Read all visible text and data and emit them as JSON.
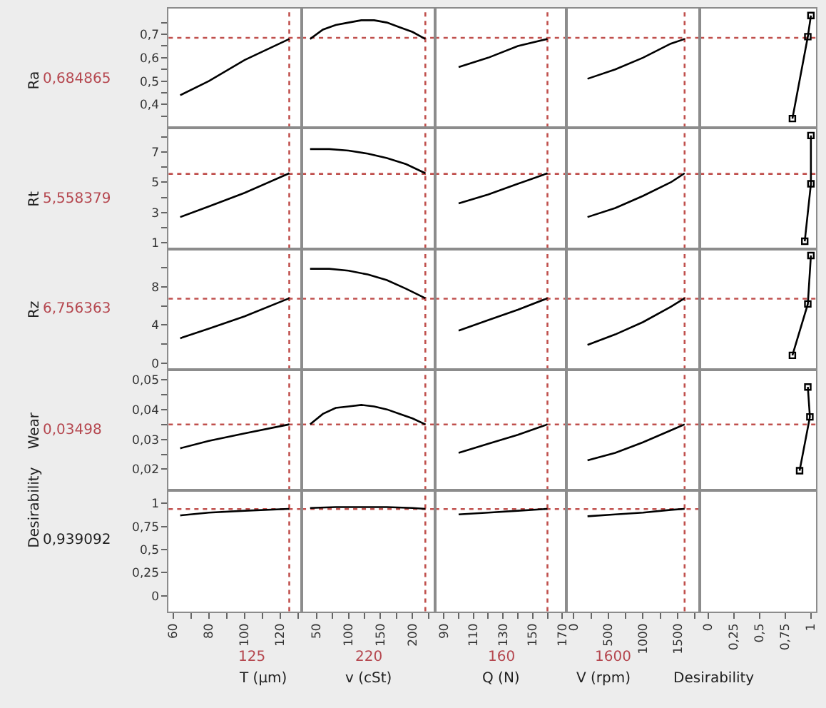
{
  "chart_data": [
    {
      "type": "line",
      "ylabel": "Ra",
      "annotations": [
        "0,684865"
      ],
      "x": [
        64,
        80,
        100,
        125
      ],
      "values": [
        0.44,
        0.5,
        0.59,
        0.68
      ],
      "color": "#000000",
      "xlim": [
        57.5,
        132
      ],
      "ylim": [
        0.3,
        0.81
      ],
      "yticks": [
        {
          "value": 0.35,
          "label": null
        },
        {
          "value": 0.4,
          "label": "0,4"
        },
        {
          "value": 0.45,
          "label": null
        },
        {
          "value": 0.5,
          "label": "0,5"
        },
        {
          "value": 0.55,
          "label": null
        },
        {
          "value": 0.6,
          "label": "0,6"
        },
        {
          "value": 0.65,
          "label": null
        },
        {
          "value": 0.7,
          "label": "0,7"
        },
        {
          "value": 0.75,
          "label": null
        }
      ],
      "tick_labels": "y",
      "ref_lines": [
        {
          "axis": "y",
          "value": 0.684865,
          "color": "#c0504d",
          "line_style": "dotted"
        },
        {
          "axis": "x",
          "value": 125,
          "color": "#c0504d",
          "line_style": "dotted"
        }
      ]
    },
    {
      "type": "line",
      "x": [
        40,
        60,
        80,
        100,
        120,
        140,
        160,
        180,
        200,
        220
      ],
      "values": [
        0.68,
        0.72,
        0.74,
        0.75,
        0.76,
        0.76,
        0.75,
        0.73,
        0.71,
        0.68
      ],
      "color": "#000000",
      "xlim": [
        27,
        235
      ],
      "ylim": [
        0.3,
        0.81
      ],
      "tick_labels": false,
      "ref_lines": [
        {
          "axis": "y",
          "value": 0.684865,
          "color": "#c0504d",
          "line_style": "dotted"
        },
        {
          "axis": "x",
          "value": 220,
          "color": "#c0504d",
          "line_style": "dotted"
        }
      ]
    },
    {
      "type": "line",
      "x": [
        100,
        120,
        140,
        160
      ],
      "values": [
        0.56,
        0.6,
        0.65,
        0.68
      ],
      "color": "#000000",
      "xlim": [
        84,
        173
      ],
      "ylim": [
        0.3,
        0.81
      ],
      "tick_labels": false,
      "ref_lines": [
        {
          "axis": "y",
          "value": 0.684865,
          "color": "#c0504d",
          "line_style": "dotted"
        },
        {
          "axis": "x",
          "value": 160,
          "color": "#c0504d",
          "line_style": "dotted"
        }
      ]
    },
    {
      "type": "line",
      "x": [
        200,
        600,
        1000,
        1400,
        1600
      ],
      "values": [
        0.51,
        0.55,
        0.6,
        0.66,
        0.68
      ],
      "color": "#000000",
      "xlim": [
        -100,
        1820
      ],
      "ylim": [
        0.3,
        0.81
      ],
      "tick_labels": false,
      "ref_lines": [
        {
          "axis": "y",
          "value": 0.684865,
          "color": "#c0504d",
          "line_style": "dotted"
        },
        {
          "axis": "x",
          "value": 1600,
          "color": "#c0504d",
          "line_style": "dotted"
        }
      ]
    },
    {
      "type": "line",
      "x": [
        0.82,
        0.97,
        1.0
      ],
      "values": [
        0.34,
        0.69,
        0.78
      ],
      "color": "#000000",
      "marker": "square",
      "xlim": [
        -0.08,
        1.05
      ],
      "ylim": [
        0.3,
        0.81
      ],
      "tick_labels": false,
      "ref_lines": [
        {
          "axis": "y",
          "value": 0.684865,
          "color": "#c0504d",
          "line_style": "dotted"
        }
      ]
    },
    {
      "type": "line",
      "ylabel": "Rt",
      "annotations": [
        "5,558379"
      ],
      "x": [
        64,
        80,
        100,
        125
      ],
      "values": [
        2.7,
        3.4,
        4.3,
        5.6
      ],
      "color": "#000000",
      "xlim": [
        57.5,
        132
      ],
      "ylim": [
        0.6,
        8.6
      ],
      "yticks": [
        1,
        {
          "value": 2,
          "label": null
        },
        3,
        {
          "value": 4,
          "label": null
        },
        5,
        {
          "value": 6,
          "label": null
        },
        7,
        {
          "value": 8,
          "label": null
        }
      ],
      "tick_labels": "y",
      "ref_lines": [
        {
          "axis": "y",
          "value": 5.558379,
          "color": "#c0504d",
          "line_style": "dotted"
        },
        {
          "axis": "x",
          "value": 125,
          "color": "#c0504d",
          "line_style": "dotted"
        }
      ]
    },
    {
      "type": "line",
      "x": [
        40,
        70,
        100,
        130,
        160,
        190,
        220
      ],
      "values": [
        7.2,
        7.2,
        7.1,
        6.9,
        6.6,
        6.2,
        5.6
      ],
      "color": "#000000",
      "xlim": [
        27,
        235
      ],
      "ylim": [
        0.6,
        8.6
      ],
      "tick_labels": false,
      "ref_lines": [
        {
          "axis": "y",
          "value": 5.558379,
          "color": "#c0504d",
          "line_style": "dotted"
        },
        {
          "axis": "x",
          "value": 220,
          "color": "#c0504d",
          "line_style": "dotted"
        }
      ]
    },
    {
      "type": "line",
      "x": [
        100,
        120,
        140,
        160
      ],
      "values": [
        3.6,
        4.2,
        4.9,
        5.6
      ],
      "color": "#000000",
      "xlim": [
        84,
        173
      ],
      "ylim": [
        0.6,
        8.6
      ],
      "tick_labels": false,
      "ref_lines": [
        {
          "axis": "y",
          "value": 5.558379,
          "color": "#c0504d",
          "line_style": "dotted"
        },
        {
          "axis": "x",
          "value": 160,
          "color": "#c0504d",
          "line_style": "dotted"
        }
      ]
    },
    {
      "type": "line",
      "x": [
        200,
        600,
        1000,
        1400,
        1600
      ],
      "values": [
        2.7,
        3.3,
        4.1,
        5.0,
        5.6
      ],
      "color": "#000000",
      "xlim": [
        -100,
        1820
      ],
      "ylim": [
        0.6,
        8.6
      ],
      "tick_labels": false,
      "ref_lines": [
        {
          "axis": "y",
          "value": 5.558379,
          "color": "#c0504d",
          "line_style": "dotted"
        },
        {
          "axis": "x",
          "value": 1600,
          "color": "#c0504d",
          "line_style": "dotted"
        }
      ]
    },
    {
      "type": "line",
      "x": [
        0.94,
        1.0,
        1.0
      ],
      "values": [
        1.1,
        4.9,
        8.1
      ],
      "color": "#000000",
      "marker": "square",
      "xlim": [
        -0.08,
        1.05
      ],
      "ylim": [
        0.6,
        8.6
      ],
      "tick_labels": false,
      "ref_lines": [
        {
          "axis": "y",
          "value": 5.558379,
          "color": "#c0504d",
          "line_style": "dotted"
        }
      ]
    },
    {
      "type": "line",
      "ylabel": "Rz",
      "annotations": [
        "6,756363"
      ],
      "x": [
        64,
        80,
        100,
        125
      ],
      "values": [
        2.6,
        3.6,
        4.9,
        6.8
      ],
      "color": "#000000",
      "xlim": [
        57.5,
        132
      ],
      "ylim": [
        -0.7,
        12
      ],
      "yticks": [
        0,
        {
          "value": 2,
          "label": null
        },
        4,
        {
          "value": 6,
          "label": null
        },
        8,
        {
          "value": 10,
          "label": null
        }
      ],
      "tick_labels": "y",
      "ref_lines": [
        {
          "axis": "y",
          "value": 6.756363,
          "color": "#c0504d",
          "line_style": "dotted"
        },
        {
          "axis": "x",
          "value": 125,
          "color": "#c0504d",
          "line_style": "dotted"
        }
      ]
    },
    {
      "type": "line",
      "x": [
        40,
        70,
        100,
        130,
        160,
        190,
        220
      ],
      "values": [
        9.9,
        9.9,
        9.7,
        9.3,
        8.7,
        7.8,
        6.8
      ],
      "color": "#000000",
      "xlim": [
        27,
        235
      ],
      "ylim": [
        -0.7,
        12
      ],
      "tick_labels": false,
      "ref_lines": [
        {
          "axis": "y",
          "value": 6.756363,
          "color": "#c0504d",
          "line_style": "dotted"
        },
        {
          "axis": "x",
          "value": 220,
          "color": "#c0504d",
          "line_style": "dotted"
        }
      ]
    },
    {
      "type": "line",
      "x": [
        100,
        120,
        140,
        160
      ],
      "values": [
        3.4,
        4.5,
        5.6,
        6.8
      ],
      "color": "#000000",
      "xlim": [
        84,
        173
      ],
      "ylim": [
        -0.7,
        12
      ],
      "tick_labels": false,
      "ref_lines": [
        {
          "axis": "y",
          "value": 6.756363,
          "color": "#c0504d",
          "line_style": "dotted"
        },
        {
          "axis": "x",
          "value": 160,
          "color": "#c0504d",
          "line_style": "dotted"
        }
      ]
    },
    {
      "type": "line",
      "x": [
        200,
        600,
        1000,
        1400,
        1600
      ],
      "values": [
        1.9,
        3.0,
        4.3,
        5.9,
        6.8
      ],
      "color": "#000000",
      "xlim": [
        -100,
        1820
      ],
      "ylim": [
        -0.7,
        12
      ],
      "tick_labels": false,
      "ref_lines": [
        {
          "axis": "y",
          "value": 6.756363,
          "color": "#c0504d",
          "line_style": "dotted"
        },
        {
          "axis": "x",
          "value": 1600,
          "color": "#c0504d",
          "line_style": "dotted"
        }
      ]
    },
    {
      "type": "line",
      "x": [
        0.82,
        0.97,
        1.0
      ],
      "values": [
        0.8,
        6.2,
        11.3
      ],
      "color": "#000000",
      "marker": "square",
      "xlim": [
        -0.08,
        1.05
      ],
      "ylim": [
        -0.7,
        12
      ],
      "tick_labels": false,
      "ref_lines": [
        {
          "axis": "y",
          "value": 6.756363,
          "color": "#c0504d",
          "line_style": "dotted"
        }
      ]
    },
    {
      "type": "line",
      "ylabel": "Wear",
      "annotations": [
        "0,03498"
      ],
      "x": [
        64,
        80,
        100,
        125
      ],
      "values": [
        0.027,
        0.0295,
        0.032,
        0.035
      ],
      "color": "#000000",
      "xlim": [
        57.5,
        132
      ],
      "ylim": [
        0.0129,
        0.0533
      ],
      "yticks": [
        {
          "value": 0.02,
          "label": "0,02"
        },
        {
          "value": 0.025,
          "label": null
        },
        {
          "value": 0.03,
          "label": "0,03"
        },
        {
          "value": 0.035,
          "label": null
        },
        {
          "value": 0.04,
          "label": "0,04"
        },
        {
          "value": 0.045,
          "label": null
        },
        {
          "value": 0.05,
          "label": "0,05"
        }
      ],
      "tick_labels": "y",
      "ref_lines": [
        {
          "axis": "y",
          "value": 0.03498,
          "color": "#c0504d",
          "line_style": "dotted"
        },
        {
          "axis": "x",
          "value": 125,
          "color": "#c0504d",
          "line_style": "dotted"
        }
      ]
    },
    {
      "type": "line",
      "x": [
        40,
        60,
        80,
        100,
        120,
        140,
        160,
        180,
        200,
        220
      ],
      "values": [
        0.035,
        0.0385,
        0.0405,
        0.041,
        0.0415,
        0.041,
        0.04,
        0.0385,
        0.037,
        0.035
      ],
      "color": "#000000",
      "xlim": [
        27,
        235
      ],
      "ylim": [
        0.0129,
        0.0533
      ],
      "tick_labels": false,
      "ref_lines": [
        {
          "axis": "y",
          "value": 0.03498,
          "color": "#c0504d",
          "line_style": "dotted"
        },
        {
          "axis": "x",
          "value": 220,
          "color": "#c0504d",
          "line_style": "dotted"
        }
      ]
    },
    {
      "type": "line",
      "x": [
        100,
        120,
        140,
        160
      ],
      "values": [
        0.0255,
        0.0285,
        0.0315,
        0.035
      ],
      "color": "#000000",
      "xlim": [
        84,
        173
      ],
      "ylim": [
        0.0129,
        0.0533
      ],
      "tick_labels": false,
      "ref_lines": [
        {
          "axis": "y",
          "value": 0.03498,
          "color": "#c0504d",
          "line_style": "dotted"
        },
        {
          "axis": "x",
          "value": 160,
          "color": "#c0504d",
          "line_style": "dotted"
        }
      ]
    },
    {
      "type": "line",
      "x": [
        200,
        600,
        1000,
        1400,
        1600
      ],
      "values": [
        0.023,
        0.0255,
        0.029,
        0.033,
        0.035
      ],
      "color": "#000000",
      "xlim": [
        -100,
        1820
      ],
      "ylim": [
        0.0129,
        0.0533
      ],
      "tick_labels": false,
      "ref_lines": [
        {
          "axis": "y",
          "value": 0.03498,
          "color": "#c0504d",
          "line_style": "dotted"
        },
        {
          "axis": "x",
          "value": 1600,
          "color": "#c0504d",
          "line_style": "dotted"
        }
      ]
    },
    {
      "type": "line",
      "x": [
        0.89,
        0.99,
        0.97
      ],
      "values": [
        0.0195,
        0.0375,
        0.0475
      ],
      "color": "#000000",
      "marker": "square",
      "xlim": [
        -0.08,
        1.05
      ],
      "ylim": [
        0.0129,
        0.0533
      ],
      "tick_labels": false,
      "ref_lines": [
        {
          "axis": "y",
          "value": 0.03498,
          "color": "#c0504d",
          "line_style": "dotted"
        }
      ]
    },
    {
      "type": "line",
      "ylabel": "Desirability",
      "xlabel": "T (µm)",
      "annotations": [
        "0,939092",
        "125"
      ],
      "x": [
        64,
        80,
        100,
        125
      ],
      "values": [
        0.87,
        0.9,
        0.92,
        0.94
      ],
      "color": "#000000",
      "xlim": [
        57.5,
        132
      ],
      "ylim": [
        -0.17,
        1.14
      ],
      "xticks": [
        60,
        {
          "value": 70,
          "label": null
        },
        80,
        {
          "value": 90,
          "label": null
        },
        100,
        {
          "value": 110,
          "label": null
        },
        120,
        {
          "value": 130,
          "label": null
        }
      ],
      "yticks": [
        0,
        {
          "value": 0.25,
          "label": "0,25"
        },
        {
          "value": 0.5,
          "label": "0,5"
        },
        {
          "value": 0.75,
          "label": "0,75"
        },
        1
      ],
      "ref_lines": [
        {
          "axis": "y",
          "value": 0.939092,
          "color": "#c0504d",
          "line_style": "dotted"
        },
        {
          "axis": "x",
          "value": 125,
          "color": "#c0504d",
          "line_style": "dotted"
        }
      ]
    },
    {
      "type": "line",
      "xlabel": "v (cSt)",
      "annotations": [
        "220"
      ],
      "x": [
        40,
        80,
        120,
        160,
        200,
        220
      ],
      "values": [
        0.95,
        0.96,
        0.96,
        0.96,
        0.95,
        0.94
      ],
      "color": "#000000",
      "xlim": [
        27,
        235
      ],
      "ylim": [
        -0.17,
        1.14
      ],
      "xticks": [
        50,
        {
          "value": 75,
          "label": null
        },
        100,
        {
          "value": 125,
          "label": null
        },
        150,
        {
          "value": 175,
          "label": null
        },
        200,
        {
          "value": 225,
          "label": null
        }
      ],
      "tick_labels": "x",
      "ref_lines": [
        {
          "axis": "y",
          "value": 0.939092,
          "color": "#c0504d",
          "line_style": "dotted"
        },
        {
          "axis": "x",
          "value": 220,
          "color": "#c0504d",
          "line_style": "dotted"
        }
      ]
    },
    {
      "type": "line",
      "xlabel": "Q (N)",
      "annotations": [
        "160"
      ],
      "x": [
        100,
        120,
        140,
        160
      ],
      "values": [
        0.88,
        0.9,
        0.92,
        0.94
      ],
      "color": "#000000",
      "xlim": [
        84,
        173
      ],
      "ylim": [
        -0.17,
        1.14
      ],
      "xticks": [
        90,
        {
          "value": 100,
          "label": null
        },
        110,
        {
          "value": 120,
          "label": null
        },
        130,
        {
          "value": 140,
          "label": null
        },
        150,
        {
          "value": 160,
          "label": null
        },
        170
      ],
      "tick_labels": "x",
      "ref_lines": [
        {
          "axis": "y",
          "value": 0.939092,
          "color": "#c0504d",
          "line_style": "dotted"
        },
        {
          "axis": "x",
          "value": 160,
          "color": "#c0504d",
          "line_style": "dotted"
        }
      ]
    },
    {
      "type": "line",
      "xlabel": "V (rpm)",
      "annotations": [
        "1600"
      ],
      "x": [
        200,
        600,
        1000,
        1400,
        1600
      ],
      "values": [
        0.86,
        0.88,
        0.9,
        0.93,
        0.94
      ],
      "color": "#000000",
      "xlim": [
        -100,
        1820
      ],
      "ylim": [
        -0.17,
        1.14
      ],
      "xticks": [
        0,
        {
          "value": 250,
          "label": null
        },
        500,
        {
          "value": 750,
          "label": null
        },
        1000,
        {
          "value": 1250,
          "label": null
        },
        1500,
        {
          "value": 1750,
          "label": null
        }
      ],
      "tick_labels": "x",
      "ref_lines": [
        {
          "axis": "y",
          "value": 0.939092,
          "color": "#c0504d",
          "line_style": "dotted"
        },
        {
          "axis": "x",
          "value": 1600,
          "color": "#c0504d",
          "line_style": "dotted"
        }
      ]
    },
    {
      "type": "line",
      "xlabel": "Desirability",
      "xlim": [
        -0.08,
        1.05
      ],
      "ylim": [
        -0.17,
        1.14
      ],
      "xticks": [
        0,
        {
          "value": 0.25,
          "label": "0,25"
        },
        {
          "value": 0.5,
          "label": "0,5"
        },
        {
          "value": 0.75,
          "label": "0,75"
        },
        1
      ],
      "tick_labels": "x"
    }
  ]
}
